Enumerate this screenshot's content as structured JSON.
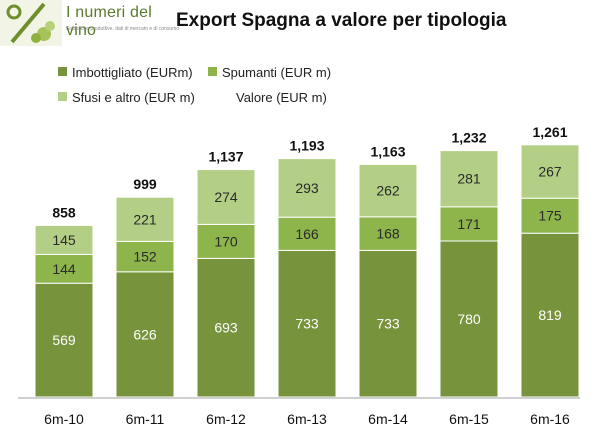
{
  "logo": {
    "title": "I numeri del vino",
    "tagline": "Statistiche produttive, dati di mercato e di consumo"
  },
  "colors": {
    "bottled": "#77933c",
    "sparkling": "#8db54b",
    "bulk": "#b3cf86",
    "axis": "#a0a0a0",
    "seg_text_light": "#ffffff",
    "seg_text_dark": "#2a2a2a"
  },
  "chart_data": {
    "type": "bar",
    "stacked": true,
    "title": "Export Spagna a valore per tipologia",
    "categories": [
      "6m-10",
      "6m-11",
      "6m-12",
      "6m-13",
      "6m-14",
      "6m-15",
      "6m-16"
    ],
    "series": [
      {
        "name": "Imbottigliato (EURm)",
        "values": [
          569,
          626,
          693,
          733,
          733,
          780,
          819
        ]
      },
      {
        "name": "Spumanti (EUR m)",
        "values": [
          144,
          152,
          170,
          166,
          168,
          171,
          175
        ]
      },
      {
        "name": "Sfusi e altro (EUR m)",
        "values": [
          145,
          221,
          274,
          293,
          262,
          281,
          267
        ]
      }
    ],
    "totals_label": "Valore (EUR m)",
    "totals": [
      "858",
      "999",
      "1,137",
      "1,193",
      "1,163",
      "1,232",
      "1,261"
    ],
    "legend_position": "top-left",
    "grid": false
  }
}
